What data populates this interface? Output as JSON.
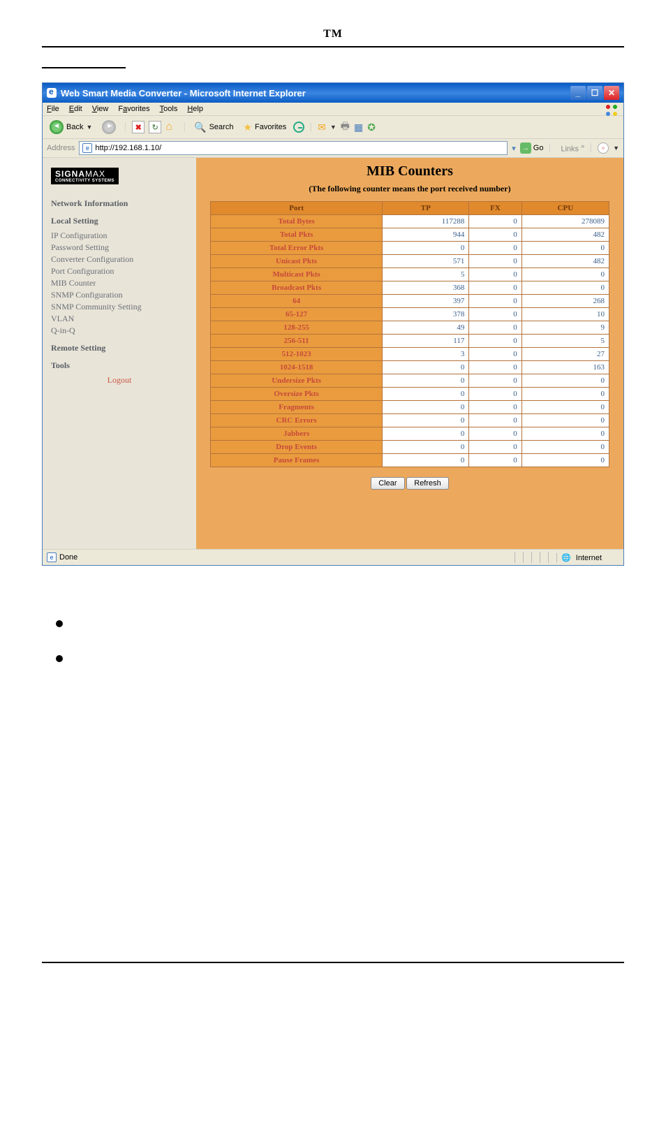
{
  "header": {
    "tm": "TM"
  },
  "ie": {
    "title": "Web Smart Media Converter - Microsoft Internet Explorer",
    "menu": {
      "file": "File",
      "edit": "Edit",
      "view": "View",
      "favorites": "Favorites",
      "tools": "Tools",
      "help": "Help"
    },
    "toolbar": {
      "back": "Back",
      "search": "Search",
      "favorites": "Favorites"
    },
    "address": {
      "label": "Address",
      "url": "http://192.168.1.10/",
      "go": "Go",
      "links": "Links"
    },
    "status": {
      "done": "Done",
      "zone": "Internet"
    }
  },
  "sidebar": {
    "logo": "SIGNA",
    "logo2": "MAX",
    "logosub": "CONNECTIVITY SYSTEMS",
    "netinfo": "Network Information",
    "local": "Local Setting",
    "localItems": [
      "IP Configuration",
      "Password Setting",
      "Converter Configuration",
      "Port Configuration",
      "MIB Counter",
      "SNMP Configuration",
      "SNMP Community Setting",
      "VLAN",
      "Q-in-Q"
    ],
    "remote": "Remote Setting",
    "tools": "Tools",
    "logout": "Logout"
  },
  "mib": {
    "title": "MIB Counters",
    "subtitle": "(The following counter means the port received number)",
    "columns": [
      "Port",
      "TP",
      "FX",
      "CPU"
    ],
    "rows": [
      {
        "k": "Total Bytes",
        "v": [
          "117288",
          "0",
          "278089"
        ]
      },
      {
        "k": "Total Pkts",
        "v": [
          "944",
          "0",
          "482"
        ]
      },
      {
        "k": "Total Error Pkts",
        "v": [
          "0",
          "0",
          "0"
        ]
      },
      {
        "k": "Unicast Pkts",
        "v": [
          "571",
          "0",
          "482"
        ]
      },
      {
        "k": "Multicast Pkts",
        "v": [
          "5",
          "0",
          "0"
        ]
      },
      {
        "k": "Broadcast Pkts",
        "v": [
          "368",
          "0",
          "0"
        ]
      },
      {
        "k": "64",
        "v": [
          "397",
          "0",
          "268"
        ]
      },
      {
        "k": "65-127",
        "v": [
          "378",
          "0",
          "10"
        ]
      },
      {
        "k": "128-255",
        "v": [
          "49",
          "0",
          "9"
        ]
      },
      {
        "k": "256-511",
        "v": [
          "117",
          "0",
          "5"
        ]
      },
      {
        "k": "512-1023",
        "v": [
          "3",
          "0",
          "27"
        ]
      },
      {
        "k": "1024-1518",
        "v": [
          "0",
          "0",
          "163"
        ]
      },
      {
        "k": "Undersize Pkts",
        "v": [
          "0",
          "0",
          "0"
        ]
      },
      {
        "k": "Oversize Pkts",
        "v": [
          "0",
          "0",
          "0"
        ]
      },
      {
        "k": "Fragments",
        "v": [
          "0",
          "0",
          "0"
        ]
      },
      {
        "k": "CRC Errors",
        "v": [
          "0",
          "0",
          "0"
        ]
      },
      {
        "k": "Jabbers",
        "v": [
          "0",
          "0",
          "0"
        ]
      },
      {
        "k": "Drop Events",
        "v": [
          "0",
          "0",
          "0"
        ]
      },
      {
        "k": "Pause Frames",
        "v": [
          "0",
          "0",
          "0"
        ]
      }
    ],
    "buttons": {
      "clear": "Clear",
      "refresh": "Refresh"
    }
  }
}
